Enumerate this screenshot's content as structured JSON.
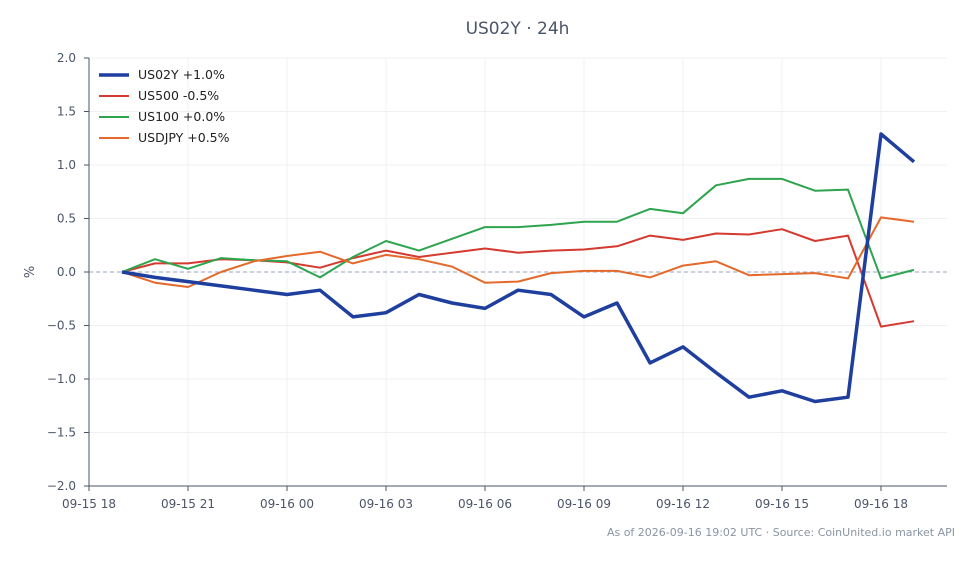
{
  "title": "US02Y · 24h",
  "footer": "As of 2026-09-16 19:02 UTC · Source: CoinUnited.io market API",
  "chart_data": {
    "type": "line",
    "title": "US02Y · 24h",
    "ylabel": "%",
    "xlabel": "",
    "ylim": [
      -2.0,
      2.0
    ],
    "yticks": [
      2.0,
      1.5,
      1.0,
      0.5,
      0.0,
      -0.5,
      -1.0,
      -1.5,
      -2.0
    ],
    "ytick_labels": [
      "2.0",
      "1.5",
      "1.0",
      "0.5",
      "0.0",
      "−0.5",
      "−1.0",
      "−1.5",
      "−2.0"
    ],
    "xlim": [
      "2026-09-15 18:00",
      "2026-09-16 20:00"
    ],
    "xticks": [
      "2026-09-15 18:00",
      "2026-09-15 21:00",
      "2026-09-16 00:00",
      "2026-09-16 03:00",
      "2026-09-16 06:00",
      "2026-09-16 09:00",
      "2026-09-16 12:00",
      "2026-09-16 15:00",
      "2026-09-16 18:00"
    ],
    "xtick_labels": [
      "09-15 18",
      "09-15 21",
      "09-16 00",
      "09-16 03",
      "09-16 06",
      "09-16 09",
      "09-16 12",
      "09-16 15",
      "09-16 18"
    ],
    "x": [
      "2026-09-15 19:00",
      "2026-09-15 20:00",
      "2026-09-15 21:00",
      "2026-09-15 22:00",
      "2026-09-15 23:00",
      "2026-09-16 00:00",
      "2026-09-16 01:00",
      "2026-09-16 02:00",
      "2026-09-16 03:00",
      "2026-09-16 04:00",
      "2026-09-16 05:00",
      "2026-09-16 06:00",
      "2026-09-16 07:00",
      "2026-09-16 08:00",
      "2026-09-16 09:00",
      "2026-09-16 10:00",
      "2026-09-16 11:00",
      "2026-09-16 12:00",
      "2026-09-16 13:00",
      "2026-09-16 14:00",
      "2026-09-16 15:00",
      "2026-09-16 16:00",
      "2026-09-16 17:00",
      "2026-09-16 18:00",
      "2026-09-16 19:00"
    ],
    "reference_line": 0.0,
    "grid": true,
    "legend_position": "top-left",
    "series": [
      {
        "name": "US02Y +1.0%",
        "color": "#1f3f9e",
        "width": "thick",
        "values": [
          0.0,
          -0.05,
          -0.09,
          -0.13,
          -0.17,
          -0.21,
          -0.17,
          -0.42,
          -0.38,
          -0.21,
          -0.29,
          -0.34,
          -0.17,
          -0.21,
          -0.42,
          -0.29,
          -0.85,
          -0.7,
          -0.94,
          -1.17,
          -1.11,
          -1.21,
          -1.17,
          1.29,
          1.03
        ]
      },
      {
        "name": "US500 -0.5%",
        "color": "#d43a2f",
        "width": "normal",
        "values": [
          0.0,
          0.08,
          0.08,
          0.12,
          0.11,
          0.09,
          0.04,
          0.13,
          0.2,
          0.14,
          0.18,
          0.22,
          0.18,
          0.2,
          0.21,
          0.24,
          0.34,
          0.3,
          0.36,
          0.35,
          0.4,
          0.29,
          0.34,
          -0.51,
          -0.46
        ]
      },
      {
        "name": "US100 +0.0%",
        "color": "#2ea44f",
        "width": "normal",
        "values": [
          0.0,
          0.12,
          0.03,
          0.13,
          0.11,
          0.1,
          -0.05,
          0.14,
          0.29,
          0.2,
          0.31,
          0.42,
          0.42,
          0.44,
          0.47,
          0.47,
          0.59,
          0.55,
          0.81,
          0.87,
          0.87,
          0.76,
          0.77,
          -0.06,
          0.02
        ]
      },
      {
        "name": "USDJPY +0.5%",
        "color": "#e4692a",
        "width": "normal",
        "values": [
          0.0,
          -0.1,
          -0.14,
          0.0,
          0.1,
          0.15,
          0.19,
          0.08,
          0.16,
          0.12,
          0.05,
          -0.1,
          -0.09,
          -0.01,
          0.01,
          0.01,
          -0.05,
          0.06,
          0.1,
          -0.03,
          -0.02,
          -0.01,
          -0.06,
          0.51,
          0.47
        ]
      }
    ]
  }
}
